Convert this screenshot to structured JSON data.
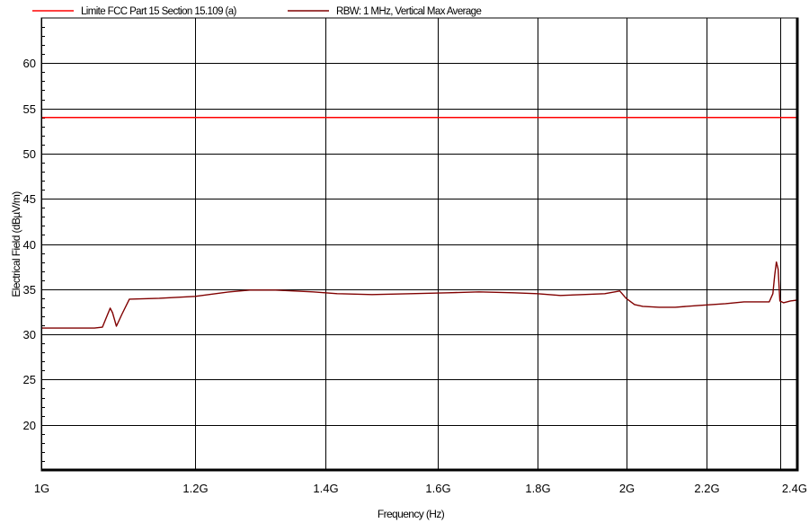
{
  "chart_data": {
    "type": "line",
    "title": "",
    "xlabel": "Frequency (Hz)",
    "ylabel": "Electrical Field (dBµV/m)",
    "x_scale": "log",
    "xlim": [
      1000000000,
      2450000000
    ],
    "ylim": [
      15,
      65
    ],
    "grid": true,
    "legend_position": "top-left",
    "x_ticks": [
      {
        "value": 1000000000,
        "label": "1G"
      },
      {
        "value": 1200000000,
        "label": "1.2G"
      },
      {
        "value": 1400000000,
        "label": "1.4G"
      },
      {
        "value": 1600000000,
        "label": "1.6G"
      },
      {
        "value": 1800000000,
        "label": "1.8G"
      },
      {
        "value": 2000000000,
        "label": "2G"
      },
      {
        "value": 2200000000,
        "label": "2.2G"
      },
      {
        "value": 2400000000,
        "label": "2.4G"
      }
    ],
    "y_ticks": [
      {
        "value": 20,
        "label": "20"
      },
      {
        "value": 25,
        "label": "25"
      },
      {
        "value": 30,
        "label": "30"
      },
      {
        "value": 35,
        "label": "35"
      },
      {
        "value": 40,
        "label": "40"
      },
      {
        "value": 45,
        "label": "45"
      },
      {
        "value": 50,
        "label": "50"
      },
      {
        "value": 55,
        "label": "55"
      },
      {
        "value": 60,
        "label": "60"
      }
    ],
    "series": [
      {
        "name": "Limite FCC Part 15 Section 15.109 (a)",
        "color": "#ff0000",
        "x": [
          1000000000,
          2450000000
        ],
        "y": [
          54,
          54
        ]
      },
      {
        "name": "RBW: 1 MHz, Vertical Max Average",
        "color": "#800000",
        "x": [
          1000000000,
          1020000000,
          1040000000,
          1065000000,
          1075000000,
          1085000000,
          1088000000,
          1093000000,
          1100000000,
          1110000000,
          1150000000,
          1200000000,
          1250000000,
          1280000000,
          1320000000,
          1380000000,
          1420000000,
          1480000000,
          1550000000,
          1620000000,
          1680000000,
          1750000000,
          1800000000,
          1850000000,
          1900000000,
          1950000000,
          1985000000,
          2000000000,
          2020000000,
          2040000000,
          2080000000,
          2120000000,
          2180000000,
          2250000000,
          2300000000,
          2350000000,
          2370000000,
          2380000000,
          2385000000,
          2390000000,
          2395000000,
          2400000000,
          2410000000,
          2430000000,
          2450000000
        ],
        "y": [
          30.7,
          30.7,
          30.7,
          30.7,
          30.8,
          32.9,
          32.4,
          30.9,
          32.2,
          33.9,
          34.0,
          34.2,
          34.7,
          34.9,
          34.9,
          34.7,
          34.5,
          34.4,
          34.5,
          34.6,
          34.7,
          34.6,
          34.5,
          34.3,
          34.4,
          34.5,
          34.8,
          34.0,
          33.3,
          33.1,
          33.0,
          33.0,
          33.2,
          33.4,
          33.6,
          33.6,
          33.6,
          34.5,
          36.5,
          38.0,
          37.2,
          33.7,
          33.5,
          33.7,
          33.8
        ]
      }
    ]
  }
}
